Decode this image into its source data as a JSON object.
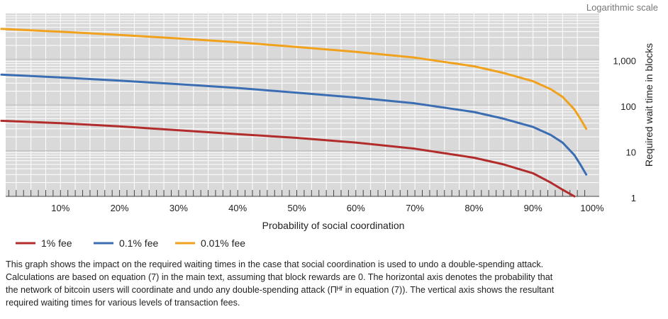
{
  "chart_data": {
    "type": "line",
    "scale_note": "Logarithmic scale",
    "xlabel": "Probability of social coordination",
    "ylabel": "Required wait time in blocks",
    "yscale": "log",
    "ylim": [
      1,
      10000
    ],
    "xlim": [
      0,
      1
    ],
    "x_ticks": [
      0.1,
      0.2,
      0.3,
      0.4,
      0.5,
      0.6,
      0.7,
      0.8,
      0.9,
      1.0
    ],
    "x_tick_labels": [
      "10%",
      "20%",
      "30%",
      "40%",
      "50%",
      "60%",
      "70%",
      "80%",
      "90%",
      "100%"
    ],
    "y_ticks": [
      1,
      10,
      100,
      1000
    ],
    "y_tick_labels": [
      "1",
      "10",
      "100",
      "1,000"
    ],
    "grid": "on",
    "legend_position": "bottom-left",
    "background_color": "#d9d9d9",
    "series": [
      {
        "name": "1% fee",
        "color": "#b22c2c",
        "x": [
          0.0,
          0.1,
          0.2,
          0.3,
          0.4,
          0.5,
          0.6,
          0.7,
          0.8,
          0.85,
          0.9,
          0.93,
          0.95,
          0.97
        ],
        "values": [
          45,
          40,
          34,
          28,
          23,
          19,
          15,
          11,
          7,
          5,
          3.2,
          2.0,
          1.4,
          1.0
        ]
      },
      {
        "name": "0.1% fee",
        "color": "#3b6db3",
        "x": [
          0.0,
          0.1,
          0.2,
          0.3,
          0.4,
          0.5,
          0.6,
          0.7,
          0.8,
          0.85,
          0.9,
          0.93,
          0.95,
          0.97,
          0.98,
          0.99
        ],
        "values": [
          460,
          400,
          340,
          285,
          235,
          185,
          145,
          108,
          70,
          50,
          33,
          22,
          15,
          8,
          5,
          3
        ]
      },
      {
        "name": "0.01% fee",
        "color": "#f0a21e",
        "x": [
          0.0,
          0.1,
          0.2,
          0.3,
          0.4,
          0.5,
          0.6,
          0.7,
          0.8,
          0.85,
          0.9,
          0.93,
          0.95,
          0.97,
          0.98,
          0.99
        ],
        "values": [
          4600,
          4000,
          3400,
          2850,
          2350,
          1850,
          1450,
          1080,
          700,
          500,
          330,
          220,
          150,
          80,
          50,
          30
        ]
      }
    ]
  },
  "caption": [
    "This graph shows the impact on the required waiting times in the case that social coordination is used to undo a double-spending attack.",
    "Calculations are based on equation (7) in the main text, assuming that block rewards are 0. The horizontal axis denotes the probability that",
    "the network of bitcoin users will coordinate and undo any double-spending attack (Πᴴᶠ in equation (7)). The vertical axis shows the resultant",
    "required waiting times for various levels of transaction fees."
  ]
}
